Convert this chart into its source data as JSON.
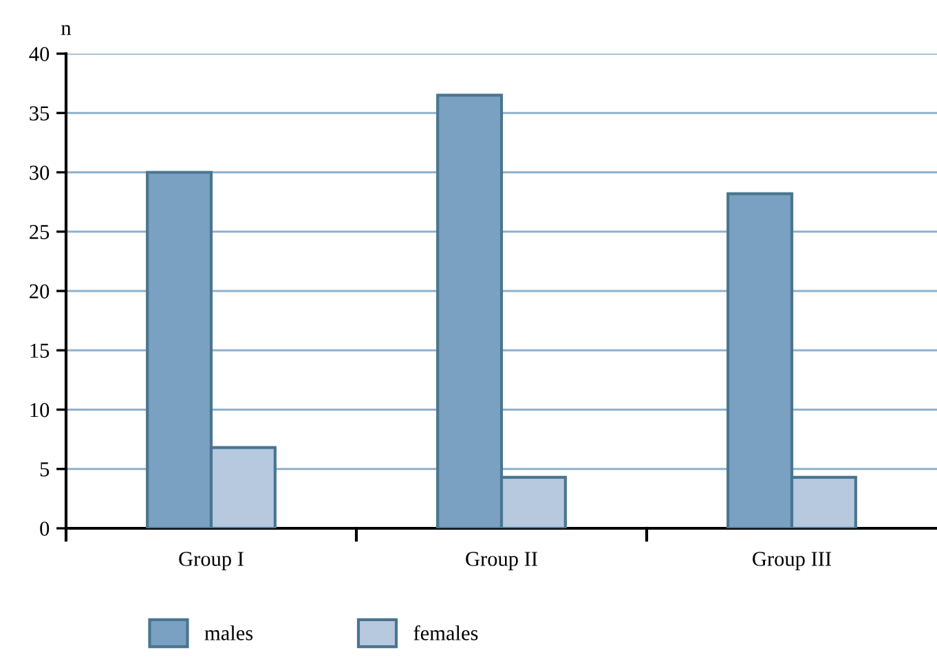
{
  "chart_data": {
    "type": "bar",
    "ylabel": "n",
    "categories": [
      "Group I",
      "Group II",
      "Group III"
    ],
    "series": [
      {
        "name": "males",
        "color": "#7aa1c2",
        "values": [
          30,
          36.5,
          28.2
        ]
      },
      {
        "name": "females",
        "color": "#b6c9de",
        "values": [
          6.8,
          4.3,
          4.3
        ]
      }
    ],
    "ylim": [
      0,
      40
    ],
    "yticks": [
      0,
      5,
      10,
      15,
      20,
      25,
      30,
      35,
      40
    ],
    "grid": "y",
    "legend": "bottom"
  }
}
